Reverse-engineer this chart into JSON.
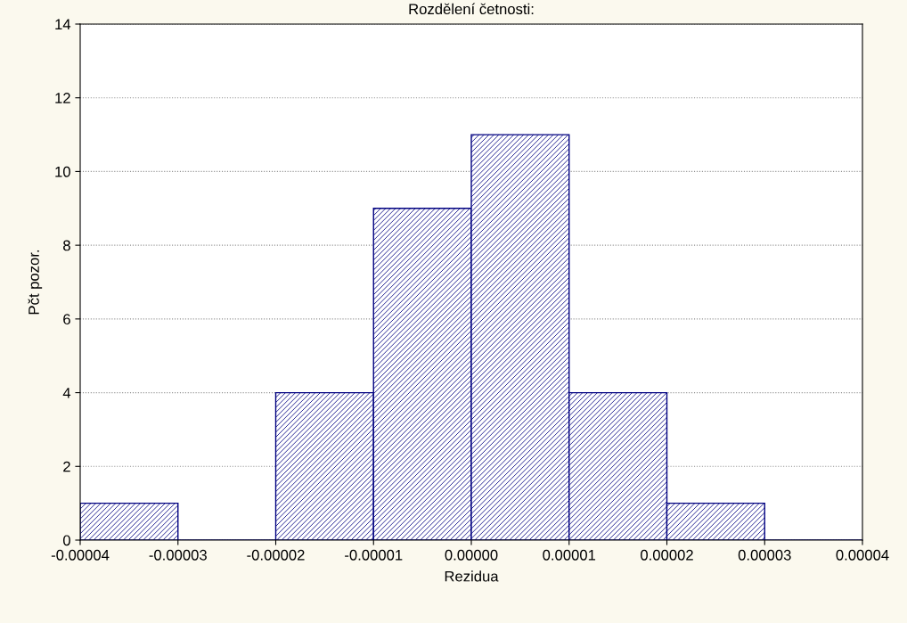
{
  "chart_data": {
    "type": "histogram",
    "title": "Rozdělení četnosti:",
    "xlabel": "Rezidua",
    "ylabel": "Pčt pozor.",
    "bins": [
      -4e-05,
      -3e-05,
      -2e-05,
      -1e-05,
      0.0,
      1e-05,
      2e-05,
      3e-05,
      4e-05
    ],
    "values": [
      1,
      0,
      4,
      9,
      11,
      4,
      1,
      0
    ],
    "color": "#000080",
    "xlim": [
      -4e-05,
      4e-05
    ],
    "xticks": [
      {
        "value": -4e-05,
        "label": "-0.00004"
      },
      {
        "value": -3e-05,
        "label": "-0.00003"
      },
      {
        "value": -2e-05,
        "label": "-0.00002"
      },
      {
        "value": -1e-05,
        "label": "-0.00001"
      },
      {
        "value": 0.0,
        "label": "0.00000"
      },
      {
        "value": 1e-05,
        "label": "0.00001"
      },
      {
        "value": 2e-05,
        "label": "0.00002"
      },
      {
        "value": 3e-05,
        "label": "0.00003"
      },
      {
        "value": 4e-05,
        "label": "0.00004"
      }
    ],
    "ylim": [
      0,
      14
    ],
    "yticks": [
      0,
      2,
      4,
      6,
      8,
      10,
      12,
      14
    ],
    "grid": "y"
  }
}
